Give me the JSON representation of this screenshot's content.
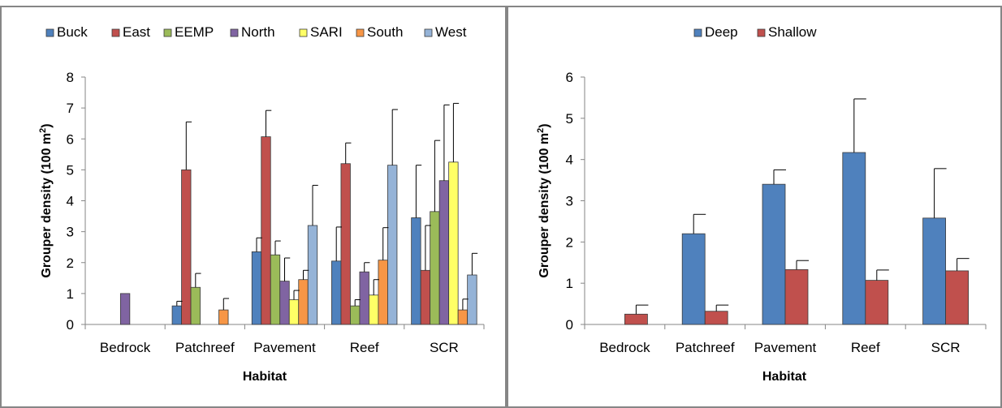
{
  "chart_data": [
    {
      "type": "bar",
      "categories": [
        "Bedrock",
        "Patchreef",
        "Pavement",
        "Reef",
        "SCR"
      ],
      "xlabel": "Habitat",
      "ylabel": "Grouper density (100 m",
      "ylabel_sup": "2",
      "ylabel_close": ")",
      "ylim": [
        0,
        8
      ],
      "yticks": [
        "0",
        "1",
        "2",
        "3",
        "4",
        "5",
        "6",
        "7",
        "8"
      ],
      "legend_position": "top",
      "grid": false,
      "series": [
        {
          "name": "Buck",
          "color": "#4f81bd",
          "values": [
            0,
            0.6,
            2.35,
            2.05,
            3.45
          ],
          "errors": [
            0,
            0.15,
            0.45,
            1.1,
            1.7
          ]
        },
        {
          "name": "East",
          "color": "#c0504d",
          "values": [
            0,
            5.0,
            6.07,
            5.2,
            1.75
          ],
          "errors": [
            0,
            1.55,
            0.85,
            0.67,
            1.45
          ]
        },
        {
          "name": "EEMP",
          "color": "#9bbb59",
          "values": [
            0,
            1.2,
            2.25,
            0.6,
            3.65
          ],
          "errors": [
            0,
            0.45,
            0.45,
            0.2,
            2.3
          ]
        },
        {
          "name": "North",
          "color": "#8064a2",
          "values": [
            1.0,
            0,
            1.4,
            1.7,
            4.65
          ],
          "errors": [
            0,
            0,
            0.75,
            0.3,
            2.45
          ]
        },
        {
          "name": "SARI",
          "color": "#ffff66",
          "values": [
            0,
            0,
            0.8,
            0.95,
            5.25
          ],
          "errors": [
            0,
            0,
            0.3,
            0.5,
            1.9
          ]
        },
        {
          "name": "South",
          "color": "#f79646",
          "values": [
            0,
            0.47,
            1.45,
            2.08,
            0.47
          ],
          "errors": [
            0,
            0.37,
            0.3,
            1.05,
            0.35
          ]
        },
        {
          "name": "West",
          "color": "#95b3d7",
          "values": [
            0,
            0,
            3.2,
            5.15,
            1.6
          ],
          "errors": [
            0,
            0,
            1.3,
            1.8,
            0.7
          ]
        }
      ]
    },
    {
      "type": "bar",
      "categories": [
        "Bedrock",
        "Patchreef",
        "Pavement",
        "Reef",
        "SCR"
      ],
      "xlabel": "Habitat",
      "ylabel": "Grouper density (100 m",
      "ylabel_sup": "2",
      "ylabel_close": ")",
      "ylim": [
        0,
        6
      ],
      "yticks": [
        "0",
        "1",
        "2",
        "3",
        "4",
        "5",
        "6"
      ],
      "legend_position": "top",
      "grid": false,
      "series": [
        {
          "name": "Deep",
          "color": "#4f81bd",
          "values": [
            0,
            2.2,
            3.4,
            4.17,
            2.58
          ],
          "errors": [
            0,
            0.47,
            0.35,
            1.3,
            1.2
          ]
        },
        {
          "name": "Shallow",
          "color": "#c0504d",
          "values": [
            0.25,
            0.32,
            1.33,
            1.07,
            1.3
          ],
          "errors": [
            0.22,
            0.15,
            0.22,
            0.25,
            0.3
          ]
        }
      ]
    }
  ]
}
